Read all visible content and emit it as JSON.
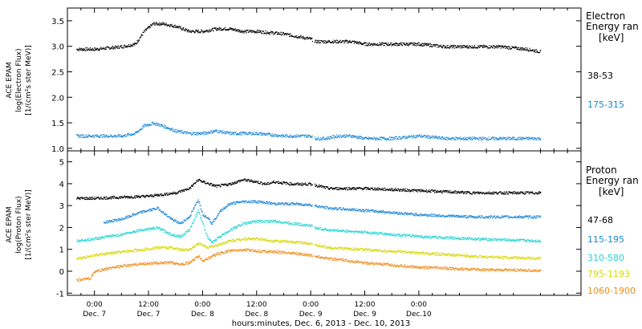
{
  "chart_data": [
    {
      "type": "scatter",
      "panel": "electron",
      "ylabel_lines": [
        "ACE EPAM",
        "log(Electron Flux)",
        "[1/(cm²s ster MeV)]"
      ],
      "ylim": [
        0.95,
        3.75
      ],
      "yticks": [
        1.0,
        1.5,
        2.0,
        2.5,
        3.0,
        3.5
      ],
      "ytick_labels": [
        "1.0",
        "1.5",
        "2.0",
        "2.5",
        "3.0",
        "3.5"
      ],
      "legend_title_lines": [
        "Electron",
        "Energy ran",
        "[keV]"
      ],
      "series": [
        {
          "name": "38-53",
          "color": "#000000",
          "x": [
            -4,
            0,
            6,
            9,
            11,
            13,
            15,
            18,
            21,
            24,
            27,
            30,
            33,
            36,
            42,
            48,
            49,
            51,
            54,
            57,
            60,
            66,
            72,
            78,
            84,
            90,
            96,
            99
          ],
          "y": [
            2.95,
            2.95,
            3.0,
            3.05,
            3.3,
            3.45,
            3.45,
            3.4,
            3.3,
            3.3,
            3.35,
            3.35,
            3.3,
            3.3,
            3.25,
            3.15,
            3.1,
            3.1,
            3.1,
            3.1,
            3.05,
            3.05,
            3.05,
            3.0,
            3.0,
            3.0,
            2.95,
            2.9
          ]
        },
        {
          "name": "175-315",
          "color": "#1b86d6",
          "x": [
            -4,
            0,
            6,
            9,
            11,
            13,
            15,
            18,
            21,
            24,
            27,
            30,
            33,
            36,
            42,
            48,
            49,
            51,
            54,
            57,
            60,
            66,
            72,
            78,
            84,
            90,
            96,
            99
          ],
          "y": [
            1.25,
            1.25,
            1.25,
            1.3,
            1.45,
            1.5,
            1.45,
            1.35,
            1.3,
            1.3,
            1.35,
            1.3,
            1.3,
            1.3,
            1.25,
            1.25,
            1.2,
            1.2,
            1.25,
            1.25,
            1.2,
            1.2,
            1.25,
            1.2,
            1.2,
            1.2,
            1.2,
            1.2
          ]
        }
      ]
    },
    {
      "type": "scatter",
      "panel": "proton",
      "ylabel_lines": [
        "ACE EPAM",
        "log(Proton Flux)",
        "[1/(cm²s ster MeV)]"
      ],
      "ylim": [
        -1.1,
        5.5
      ],
      "yticks": [
        -1,
        0,
        1,
        2,
        3,
        4,
        5
      ],
      "ytick_labels": [
        "-1",
        "0",
        "1",
        "2",
        "3",
        "4",
        "5"
      ],
      "legend_title_lines": [
        "Proton",
        "Energy ran",
        "[keV]"
      ],
      "series": [
        {
          "name": "47-68",
          "color": "#000000",
          "x": [
            -4,
            0,
            6,
            12,
            18,
            21,
            23,
            24,
            27,
            30,
            33,
            36,
            38,
            40,
            44,
            48,
            49,
            52,
            60,
            72,
            84,
            99
          ],
          "y": [
            3.35,
            3.35,
            3.4,
            3.45,
            3.6,
            3.8,
            4.2,
            4.1,
            3.9,
            4.0,
            4.2,
            4.1,
            4.0,
            4.1,
            4.0,
            4.0,
            3.95,
            3.8,
            3.8,
            3.7,
            3.6,
            3.6
          ]
        },
        {
          "name": "115-195",
          "color": "#1b86d6",
          "x": [
            2,
            6,
            10,
            14,
            17,
            19,
            21,
            23,
            24,
            25,
            26,
            27,
            28,
            30,
            33,
            36,
            40,
            44,
            48,
            49,
            52,
            60,
            72,
            84,
            99
          ],
          "y": [
            2.25,
            2.4,
            2.7,
            2.9,
            2.4,
            2.2,
            2.5,
            3.3,
            2.6,
            2.5,
            2.2,
            2.5,
            2.8,
            3.1,
            3.2,
            3.2,
            3.1,
            3.1,
            3.05,
            3.0,
            2.9,
            2.8,
            2.6,
            2.5,
            2.5
          ]
        },
        {
          "name": "310-580",
          "color": "#22d4d4",
          "x": [
            -4,
            0,
            6,
            10,
            14,
            17,
            19,
            21,
            23,
            24,
            25,
            26,
            27,
            30,
            33,
            36,
            40,
            44,
            48,
            49,
            52,
            60,
            72,
            84,
            99
          ],
          "y": [
            1.4,
            1.5,
            1.7,
            1.9,
            2.0,
            1.7,
            1.6,
            1.9,
            2.8,
            2.2,
            1.6,
            1.3,
            1.5,
            1.9,
            2.2,
            2.3,
            2.3,
            2.2,
            2.1,
            2.0,
            1.9,
            1.8,
            1.6,
            1.5,
            1.4
          ]
        },
        {
          "name": "795-1193",
          "color": "#d8d800",
          "x": [
            -4,
            0,
            6,
            10,
            14,
            17,
            19,
            21,
            23,
            24,
            25,
            27,
            30,
            33,
            36,
            40,
            44,
            48,
            49,
            52,
            60,
            72,
            84,
            99
          ],
          "y": [
            0.6,
            0.75,
            0.9,
            1.0,
            1.1,
            1.1,
            1.0,
            1.0,
            1.3,
            1.2,
            1.1,
            1.2,
            1.4,
            1.5,
            1.5,
            1.4,
            1.35,
            1.3,
            1.2,
            1.1,
            1.0,
            0.85,
            0.7,
            0.6
          ]
        },
        {
          "name": "1060-1900",
          "color": "#f08c1a",
          "x": [
            -4,
            -1,
            0,
            2,
            6,
            10,
            14,
            17,
            19,
            21,
            23,
            24,
            25,
            27,
            30,
            33,
            36,
            40,
            44,
            48,
            49,
            52,
            60,
            72,
            84,
            99
          ],
          "y": [
            -0.4,
            -0.3,
            0.0,
            0.1,
            0.25,
            0.35,
            0.4,
            0.4,
            0.35,
            0.4,
            0.7,
            0.5,
            0.6,
            0.8,
            0.95,
            1.0,
            0.95,
            0.9,
            0.85,
            0.75,
            0.7,
            0.6,
            0.4,
            0.2,
            0.1,
            0.05
          ]
        }
      ]
    }
  ],
  "x_axis": {
    "xlim": [
      -6,
      108
    ],
    "ticks": [
      {
        "x": 0,
        "line1": "0:00",
        "line2": "Dec. 7"
      },
      {
        "x": 12,
        "line1": "12:00",
        "line2": "Dec. 7"
      },
      {
        "x": 24,
        "line1": "0:00",
        "line2": "Dec. 8"
      },
      {
        "x": 36,
        "line1": "12:00",
        "line2": "Dec. 8"
      },
      {
        "x": 48,
        "line1": "0:00",
        "line2": "Dec. 9"
      },
      {
        "x": 60,
        "line1": "12:00",
        "line2": "Dec. 9"
      },
      {
        "x": 72,
        "line1": "0:00",
        "line2": "Dec.10"
      }
    ],
    "label": "hours:minutes, Dec.  6, 2013 - Dec. 10, 2013"
  }
}
